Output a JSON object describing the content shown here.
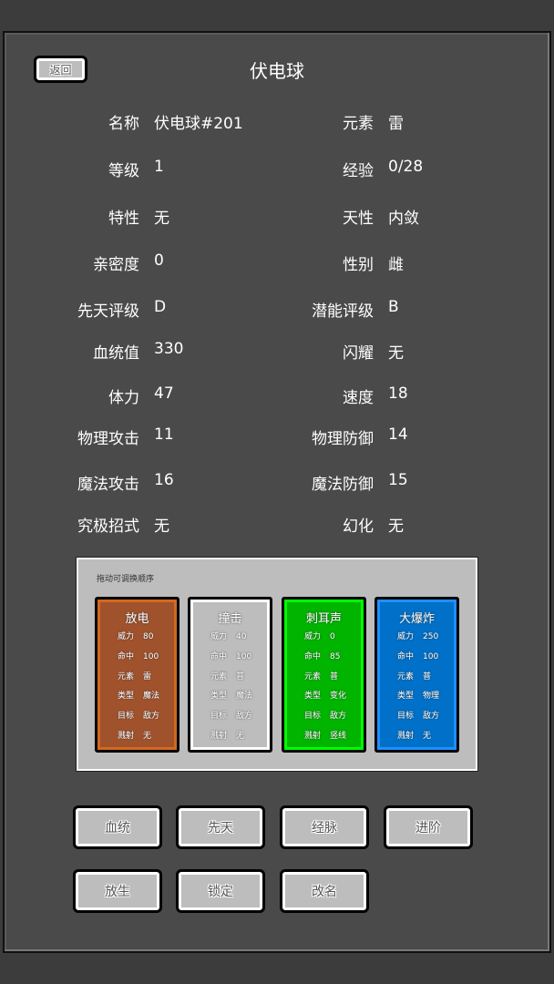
{
  "header": {
    "back_label": "返回",
    "title": "伏电球"
  },
  "stats": [
    {
      "l1": "名称",
      "v1": "伏电球#201",
      "l2": "元素",
      "v2": "雷"
    },
    {
      "l1": "等级",
      "v1": "1",
      "l2": "经验",
      "v2": "0/28"
    },
    {
      "l1": "特性",
      "v1": "无",
      "l2": "天性",
      "v2": "内敛"
    },
    {
      "l1": "亲密度",
      "v1": "0",
      "l2": "性别",
      "v2": "雌"
    },
    {
      "l1": "先天评级",
      "v1": "D",
      "l2": "潜能评级",
      "v2": "B"
    },
    {
      "l1": "血统值",
      "v1": "330",
      "l2": "闪耀",
      "v2": "无"
    },
    {
      "l1": "体力",
      "v1": "47",
      "l2": "速度",
      "v2": "18"
    },
    {
      "l1": "物理攻击",
      "v1": "11",
      "l2": "物理防御",
      "v2": "14"
    },
    {
      "l1": "魔法攻击",
      "v1": "16",
      "l2": "魔法防御",
      "v2": "15"
    },
    {
      "l1": "究极招式",
      "v1": "无",
      "l2": "幻化",
      "v2": "无"
    }
  ],
  "skills": {
    "hint": "拖动可调换顺序",
    "cards": [
      {
        "name": "放电",
        "color": "#a0522d",
        "border": "#d2691e",
        "stats": [
          [
            "威力",
            "80"
          ],
          [
            "命中",
            "100"
          ],
          [
            "元素",
            "雷"
          ],
          [
            "类型",
            "魔法"
          ],
          [
            "目标",
            "敌方"
          ],
          [
            "溅射",
            "无"
          ]
        ]
      },
      {
        "name": "撞击",
        "color": "#bdbdbd",
        "border": "#ffffff",
        "stats": [
          [
            "威力",
            "40"
          ],
          [
            "命中",
            "100"
          ],
          [
            "元素",
            "普"
          ],
          [
            "类型",
            "魔法"
          ],
          [
            "目标",
            "敌方"
          ],
          [
            "溅射",
            "无"
          ]
        ]
      },
      {
        "name": "刺耳声",
        "color": "#00b400",
        "border": "#00ff00",
        "stats": [
          [
            "威力",
            "0"
          ],
          [
            "命中",
            "85"
          ],
          [
            "元素",
            "普"
          ],
          [
            "类型",
            "变化"
          ],
          [
            "目标",
            "敌方"
          ],
          [
            "溅射",
            "竖线"
          ]
        ]
      },
      {
        "name": "大爆炸",
        "color": "#0070c8",
        "border": "#1e90ff",
        "stats": [
          [
            "威力",
            "250"
          ],
          [
            "命中",
            "100"
          ],
          [
            "元素",
            "普"
          ],
          [
            "类型",
            "物理"
          ],
          [
            "目标",
            "敌方"
          ],
          [
            "溅射",
            "无"
          ]
        ]
      }
    ]
  },
  "buttons": [
    "血统",
    "先天",
    "经脉",
    "进阶",
    "放生",
    "锁定",
    "改名"
  ]
}
